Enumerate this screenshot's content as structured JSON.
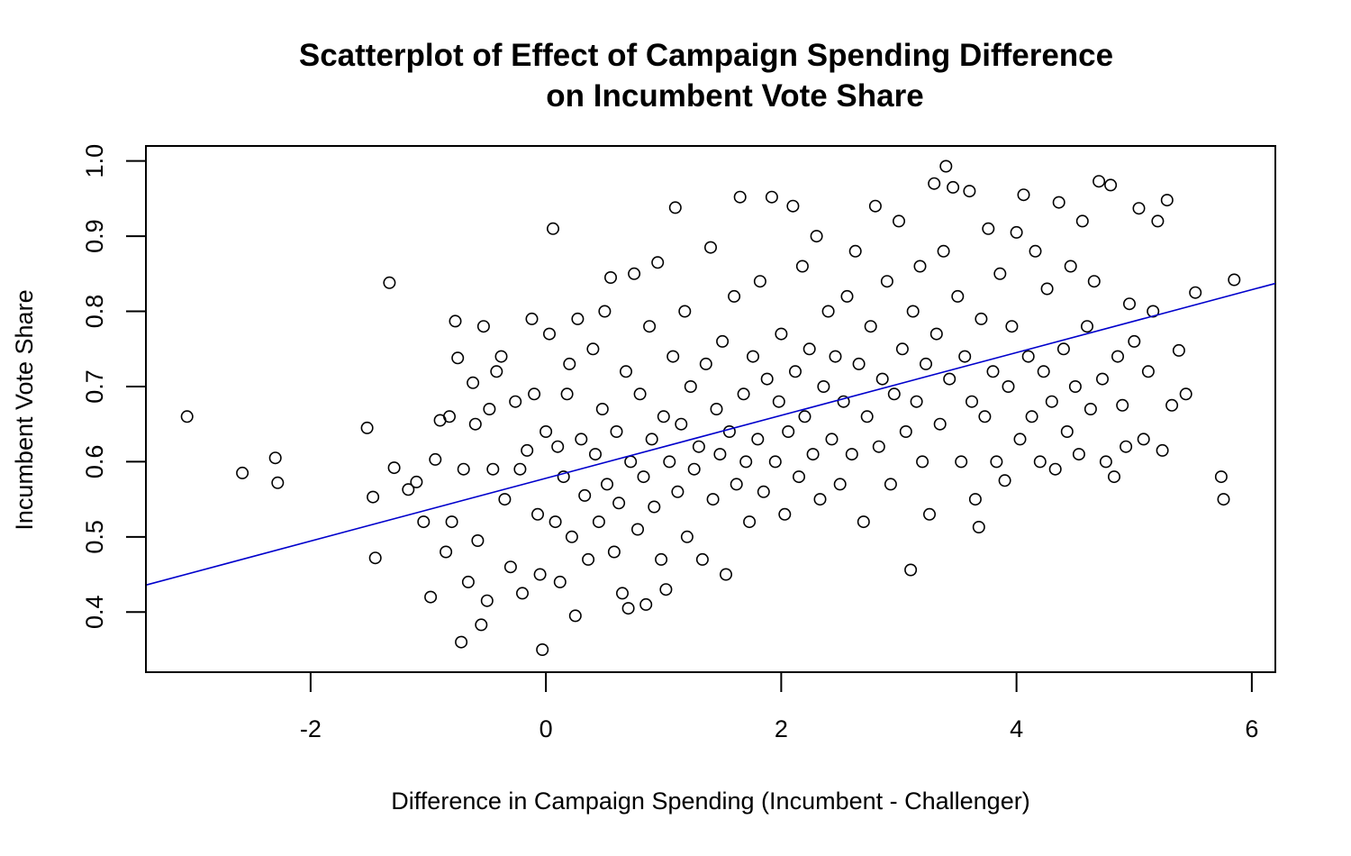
{
  "chart_data": {
    "type": "scatter",
    "title_line1": "Scatterplot of Effect of Campaign Spending Difference",
    "title_line2": "on Incumbent Vote Share",
    "xlabel": "Difference in Campaign Spending (Incumbent - Challenger)",
    "ylabel": "Incumbent Vote Share",
    "xlim": [
      -3.4,
      6.2
    ],
    "ylim": [
      0.32,
      1.02
    ],
    "x_ticks": [
      -2,
      0,
      2,
      4,
      6
    ],
    "x_tick_labels": [
      "-2",
      "0",
      "2",
      "4",
      "6"
    ],
    "y_ticks": [
      0.4,
      0.5,
      0.6,
      0.7,
      0.8,
      0.9,
      1.0
    ],
    "y_tick_labels": [
      "0.4",
      "0.5",
      "0.6",
      "0.7",
      "0.8",
      "0.9",
      "1.0"
    ],
    "point_color": "#000000",
    "grid": false,
    "regression_line": {
      "intercept": 0.578,
      "slope": 0.0418,
      "color": "#0000cc"
    },
    "points": [
      [
        -3.05,
        0.66
      ],
      [
        -2.58,
        0.585
      ],
      [
        -2.3,
        0.605
      ],
      [
        -2.28,
        0.572
      ],
      [
        -1.52,
        0.645
      ],
      [
        -1.47,
        0.553
      ],
      [
        -1.45,
        0.472
      ],
      [
        -1.33,
        0.838
      ],
      [
        -1.29,
        0.592
      ],
      [
        -1.17,
        0.563
      ],
      [
        -1.1,
        0.573
      ],
      [
        -1.04,
        0.52
      ],
      [
        -0.98,
        0.42
      ],
      [
        -0.94,
        0.603
      ],
      [
        -0.9,
        0.655
      ],
      [
        -0.85,
        0.48
      ],
      [
        -0.82,
        0.66
      ],
      [
        -0.8,
        0.52
      ],
      [
        -0.77,
        0.787
      ],
      [
        -0.75,
        0.738
      ],
      [
        -0.72,
        0.36
      ],
      [
        -0.7,
        0.59
      ],
      [
        -0.66,
        0.44
      ],
      [
        -0.62,
        0.705
      ],
      [
        -0.6,
        0.65
      ],
      [
        -0.58,
        0.495
      ],
      [
        -0.55,
        0.383
      ],
      [
        -0.53,
        0.78
      ],
      [
        -0.5,
        0.415
      ],
      [
        -0.48,
        0.67
      ],
      [
        -0.45,
        0.59
      ],
      [
        -0.42,
        0.72
      ],
      [
        -0.38,
        0.74
      ],
      [
        -0.35,
        0.55
      ],
      [
        -0.3,
        0.46
      ],
      [
        -0.26,
        0.68
      ],
      [
        -0.22,
        0.59
      ],
      [
        -0.2,
        0.425
      ],
      [
        -0.16,
        0.615
      ],
      [
        -0.12,
        0.79
      ],
      [
        -0.1,
        0.69
      ],
      [
        -0.07,
        0.53
      ],
      [
        -0.05,
        0.45
      ],
      [
        -0.03,
        0.35
      ],
      [
        0.0,
        0.64
      ],
      [
        0.03,
        0.77
      ],
      [
        0.06,
        0.91
      ],
      [
        0.08,
        0.52
      ],
      [
        0.1,
        0.62
      ],
      [
        0.12,
        0.44
      ],
      [
        0.15,
        0.58
      ],
      [
        0.18,
        0.69
      ],
      [
        0.2,
        0.73
      ],
      [
        0.22,
        0.5
      ],
      [
        0.25,
        0.395
      ],
      [
        0.27,
        0.79
      ],
      [
        0.3,
        0.63
      ],
      [
        0.33,
        0.555
      ],
      [
        0.36,
        0.47
      ],
      [
        0.4,
        0.75
      ],
      [
        0.42,
        0.61
      ],
      [
        0.45,
        0.52
      ],
      [
        0.48,
        0.67
      ],
      [
        0.5,
        0.8
      ],
      [
        0.52,
        0.57
      ],
      [
        0.55,
        0.845
      ],
      [
        0.58,
        0.48
      ],
      [
        0.6,
        0.64
      ],
      [
        0.62,
        0.545
      ],
      [
        0.65,
        0.425
      ],
      [
        0.68,
        0.72
      ],
      [
        0.7,
        0.405
      ],
      [
        0.72,
        0.6
      ],
      [
        0.75,
        0.85
      ],
      [
        0.78,
        0.51
      ],
      [
        0.8,
        0.69
      ],
      [
        0.83,
        0.58
      ],
      [
        0.85,
        0.41
      ],
      [
        0.88,
        0.78
      ],
      [
        0.9,
        0.63
      ],
      [
        0.92,
        0.54
      ],
      [
        0.95,
        0.865
      ],
      [
        0.98,
        0.47
      ],
      [
        1.0,
        0.66
      ],
      [
        1.02,
        0.43
      ],
      [
        1.05,
        0.6
      ],
      [
        1.08,
        0.74
      ],
      [
        1.1,
        0.938
      ],
      [
        1.12,
        0.56
      ],
      [
        1.15,
        0.65
      ],
      [
        1.18,
        0.8
      ],
      [
        1.2,
        0.5
      ],
      [
        1.23,
        0.7
      ],
      [
        1.26,
        0.59
      ],
      [
        1.3,
        0.62
      ],
      [
        1.33,
        0.47
      ],
      [
        1.36,
        0.73
      ],
      [
        1.4,
        0.885
      ],
      [
        1.42,
        0.55
      ],
      [
        1.45,
        0.67
      ],
      [
        1.48,
        0.61
      ],
      [
        1.5,
        0.76
      ],
      [
        1.53,
        0.45
      ],
      [
        1.56,
        0.64
      ],
      [
        1.6,
        0.82
      ],
      [
        1.62,
        0.57
      ],
      [
        1.65,
        0.952
      ],
      [
        1.68,
        0.69
      ],
      [
        1.7,
        0.6
      ],
      [
        1.73,
        0.52
      ],
      [
        1.76,
        0.74
      ],
      [
        1.8,
        0.63
      ],
      [
        1.82,
        0.84
      ],
      [
        1.85,
        0.56
      ],
      [
        1.88,
        0.71
      ],
      [
        1.92,
        0.952
      ],
      [
        1.95,
        0.6
      ],
      [
        1.98,
        0.68
      ],
      [
        2.0,
        0.77
      ],
      [
        2.03,
        0.53
      ],
      [
        2.06,
        0.64
      ],
      [
        2.1,
        0.94
      ],
      [
        2.12,
        0.72
      ],
      [
        2.15,
        0.58
      ],
      [
        2.18,
        0.86
      ],
      [
        2.2,
        0.66
      ],
      [
        2.24,
        0.75
      ],
      [
        2.27,
        0.61
      ],
      [
        2.3,
        0.9
      ],
      [
        2.33,
        0.55
      ],
      [
        2.36,
        0.7
      ],
      [
        2.4,
        0.8
      ],
      [
        2.43,
        0.63
      ],
      [
        2.46,
        0.74
      ],
      [
        2.5,
        0.57
      ],
      [
        2.53,
        0.68
      ],
      [
        2.56,
        0.82
      ],
      [
        2.6,
        0.61
      ],
      [
        2.63,
        0.88
      ],
      [
        2.66,
        0.73
      ],
      [
        2.7,
        0.52
      ],
      [
        2.73,
        0.66
      ],
      [
        2.76,
        0.78
      ],
      [
        2.8,
        0.94
      ],
      [
        2.83,
        0.62
      ],
      [
        2.86,
        0.71
      ],
      [
        2.9,
        0.84
      ],
      [
        2.93,
        0.57
      ],
      [
        2.96,
        0.69
      ],
      [
        3.0,
        0.92
      ],
      [
        3.03,
        0.75
      ],
      [
        3.06,
        0.64
      ],
      [
        3.1,
        0.456
      ],
      [
        3.12,
        0.8
      ],
      [
        3.15,
        0.68
      ],
      [
        3.18,
        0.86
      ],
      [
        3.2,
        0.6
      ],
      [
        3.23,
        0.73
      ],
      [
        3.26,
        0.53
      ],
      [
        3.3,
        0.97
      ],
      [
        3.32,
        0.77
      ],
      [
        3.35,
        0.65
      ],
      [
        3.38,
        0.88
      ],
      [
        3.4,
        0.993
      ],
      [
        3.43,
        0.71
      ],
      [
        3.46,
        0.965
      ],
      [
        3.5,
        0.82
      ],
      [
        3.53,
        0.6
      ],
      [
        3.56,
        0.74
      ],
      [
        3.6,
        0.96
      ],
      [
        3.62,
        0.68
      ],
      [
        3.65,
        0.55
      ],
      [
        3.68,
        0.513
      ],
      [
        3.7,
        0.79
      ],
      [
        3.73,
        0.66
      ],
      [
        3.76,
        0.91
      ],
      [
        3.8,
        0.72
      ],
      [
        3.83,
        0.6
      ],
      [
        3.86,
        0.85
      ],
      [
        3.9,
        0.575
      ],
      [
        3.93,
        0.7
      ],
      [
        3.96,
        0.78
      ],
      [
        4.0,
        0.905
      ],
      [
        4.03,
        0.63
      ],
      [
        4.06,
        0.955
      ],
      [
        4.1,
        0.74
      ],
      [
        4.13,
        0.66
      ],
      [
        4.16,
        0.88
      ],
      [
        4.2,
        0.6
      ],
      [
        4.23,
        0.72
      ],
      [
        4.26,
        0.83
      ],
      [
        4.3,
        0.68
      ],
      [
        4.33,
        0.59
      ],
      [
        4.36,
        0.945
      ],
      [
        4.4,
        0.75
      ],
      [
        4.43,
        0.64
      ],
      [
        4.46,
        0.86
      ],
      [
        4.5,
        0.7
      ],
      [
        4.53,
        0.61
      ],
      [
        4.56,
        0.92
      ],
      [
        4.6,
        0.78
      ],
      [
        4.63,
        0.67
      ],
      [
        4.66,
        0.84
      ],
      [
        4.7,
        0.973
      ],
      [
        4.73,
        0.71
      ],
      [
        4.76,
        0.6
      ],
      [
        4.8,
        0.968
      ],
      [
        4.83,
        0.58
      ],
      [
        4.86,
        0.74
      ],
      [
        4.9,
        0.675
      ],
      [
        4.93,
        0.62
      ],
      [
        4.96,
        0.81
      ],
      [
        5.0,
        0.76
      ],
      [
        5.04,
        0.937
      ],
      [
        5.08,
        0.63
      ],
      [
        5.12,
        0.72
      ],
      [
        5.16,
        0.8
      ],
      [
        5.2,
        0.92
      ],
      [
        5.24,
        0.615
      ],
      [
        5.28,
        0.948
      ],
      [
        5.32,
        0.675
      ],
      [
        5.38,
        0.748
      ],
      [
        5.44,
        0.69
      ],
      [
        5.52,
        0.825
      ],
      [
        5.74,
        0.58
      ],
      [
        5.76,
        0.55
      ],
      [
        5.85,
        0.842
      ]
    ]
  }
}
